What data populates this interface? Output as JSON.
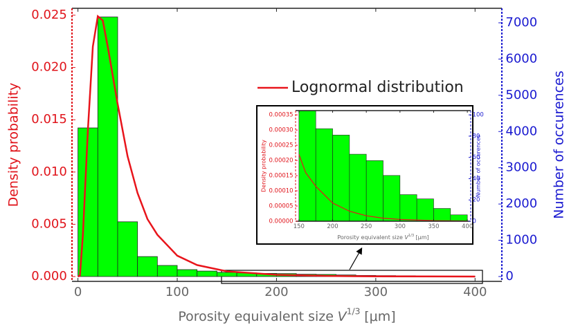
{
  "chart_data": [
    {
      "type": "histogram",
      "ylabel": "Density probability",
      "y2label": "Number of occurences",
      "xlabel": {
        "text": "Porosity equivalent size",
        "var": "V",
        "sup": "1/3",
        "unit": "[μm]"
      },
      "xlim": [
        -6,
        427
      ],
      "xticks": [
        0,
        100,
        200,
        300,
        400
      ],
      "ylim": [
        -0.00046,
        0.02566
      ],
      "yticks": [
        {
          "value": 0,
          "label": "0.000"
        },
        {
          "value": 0.005,
          "label": "0.005"
        },
        {
          "value": 0.01,
          "label": "0.010"
        },
        {
          "value": 0.015,
          "label": "0.015"
        },
        {
          "value": 0.02,
          "label": "0.020"
        },
        {
          "value": 0.025,
          "label": "0.025"
        }
      ],
      "y2lim": [
        -134,
        7400
      ],
      "y2ticks": [
        0,
        1000,
        2000,
        3000,
        4000,
        5000,
        6000,
        7000
      ],
      "ycolor": "#e0141b",
      "y2color": "#1a1ad0",
      "histogram": {
        "axis": "y2",
        "color": "#00ff00",
        "bins": [
          0,
          20,
          40,
          60,
          80,
          100,
          120,
          140,
          160,
          180,
          200,
          220,
          240,
          260,
          280,
          300,
          320,
          340,
          360,
          380,
          400
        ],
        "values": [
          4100,
          7160,
          1510,
          550,
          305,
          190,
          150,
          115,
          100,
          87,
          81,
          63,
          57,
          43,
          30,
          25,
          21,
          12,
          8,
          6
        ]
      },
      "series": [
        {
          "name": "Lognormal distribution",
          "color": "#e8141b",
          "x": [
            0,
            2,
            5,
            10,
            15,
            20,
            25,
            30,
            40,
            50,
            60,
            70,
            80,
            100,
            120,
            150,
            200,
            250,
            300,
            400
          ],
          "values": [
            0,
            0.0001,
            0.004,
            0.014,
            0.022,
            0.0249,
            0.0245,
            0.022,
            0.0165,
            0.0115,
            0.008,
            0.0055,
            0.004,
            0.002,
            0.0011,
            0.0005,
            0.00017,
            6e-05,
            2e-05,
            3e-06
          ]
        }
      ]
    },
    {
      "type": "histogram",
      "ylabel": "Density probability",
      "y2label": "Number of occurences",
      "xlabel": {
        "text": "Porosity equivalent size",
        "var": "V",
        "sup": "1/3",
        "unit": "[μm]"
      },
      "xlim": [
        145,
        405
      ],
      "xticks": [
        150,
        200,
        250,
        300,
        350,
        400
      ],
      "ylim": [
        0,
        0.000364
      ],
      "yticks": [
        {
          "value": 0,
          "label": "0.00000"
        },
        {
          "value": 5e-05,
          "label": "0.00005"
        },
        {
          "value": 0.0001,
          "label": "0.00010"
        },
        {
          "value": 0.00015,
          "label": "0.00015"
        },
        {
          "value": 0.0002,
          "label": "0.00020"
        },
        {
          "value": 0.00025,
          "label": "0.00025"
        },
        {
          "value": 0.0003,
          "label": "0.00030"
        },
        {
          "value": 0.00035,
          "label": "0.00035"
        }
      ],
      "y2lim": [
        0,
        104
      ],
      "y2ticks": [
        0,
        20,
        40,
        60,
        80,
        100
      ],
      "ycolor": "#e0141b",
      "y2color": "#1a1ad0",
      "histogram": {
        "axis": "y2",
        "color": "#00ff00",
        "bins": [
          150,
          175,
          200,
          225,
          250,
          275,
          300,
          325,
          350,
          375,
          400
        ],
        "values": [
          110,
          87,
          81,
          63,
          57,
          43,
          25,
          21,
          12,
          6
        ]
      },
      "series": [
        {
          "color": "#e8141b",
          "x": [
            150,
            160,
            175,
            200,
            225,
            250,
            275,
            300,
            350,
            400
          ],
          "values": [
            0.00022,
            0.00016,
            0.000115,
            6e-05,
            3.3e-05,
            1.8e-05,
            1e-05,
            6e-06,
            2e-06,
            1e-06
          ]
        }
      ]
    }
  ]
}
